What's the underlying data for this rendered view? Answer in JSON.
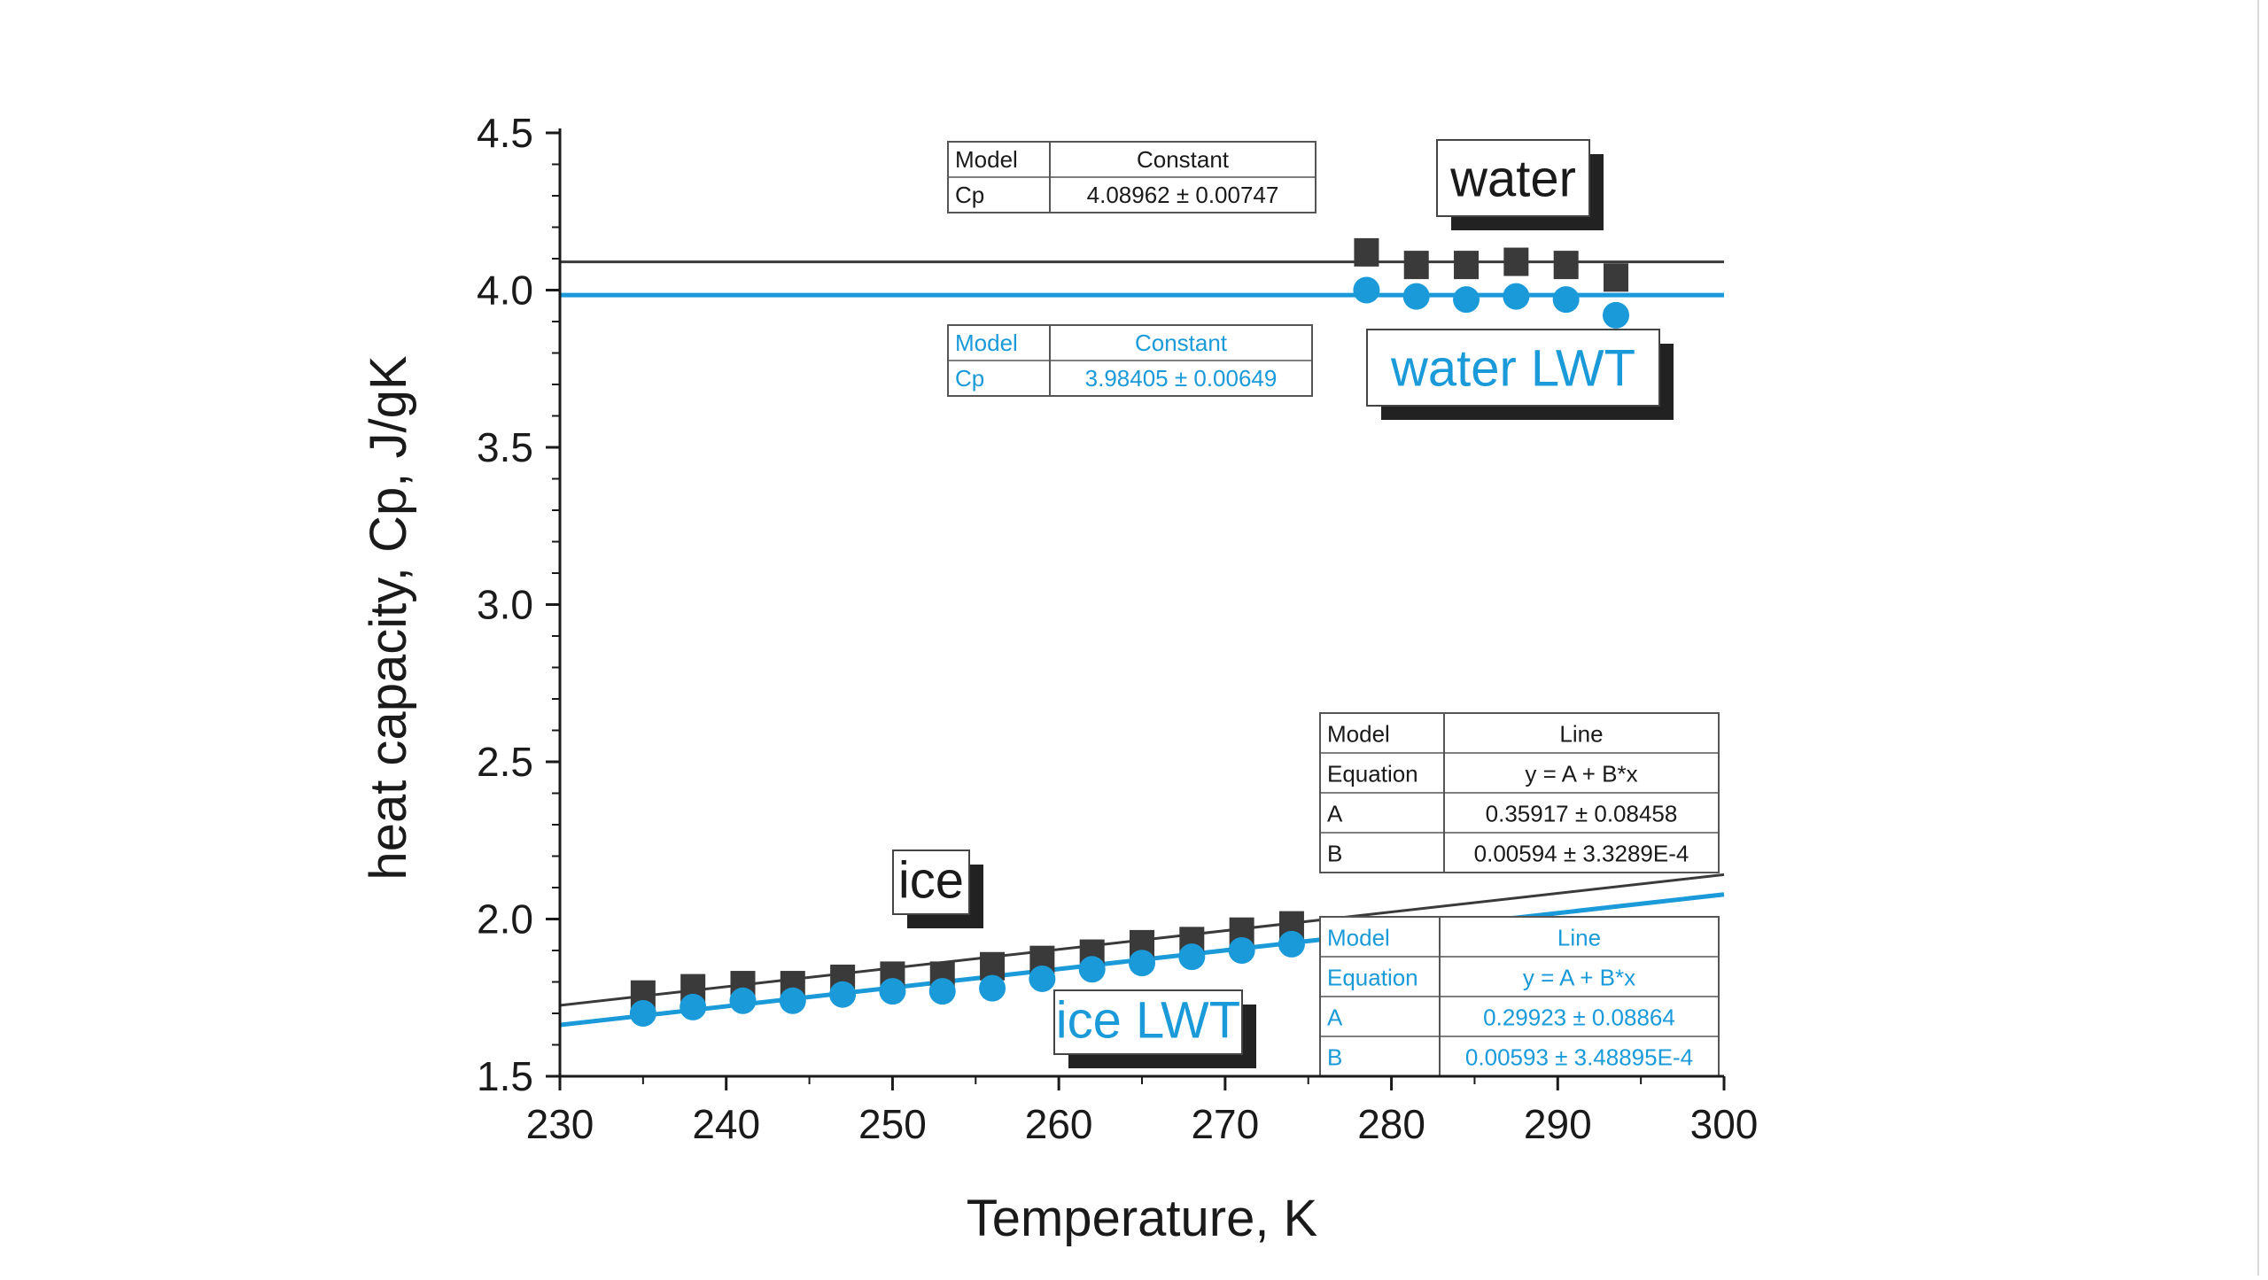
{
  "colors": {
    "water": "#3a3a3a",
    "lwt": "#1a9ad9",
    "axis": "#1a1a1a",
    "table_border": "#555555"
  },
  "chart_data": {
    "type": "scatter",
    "xlabel": "Temperature, K",
    "ylabel": "heat capacity, Cp, J/gK",
    "xlim": [
      230,
      300
    ],
    "ylim": [
      1.5,
      4.5
    ],
    "xticks": [
      230,
      240,
      250,
      260,
      270,
      280,
      290,
      300
    ],
    "yticks": [
      1.5,
      2.0,
      2.5,
      3.0,
      3.5,
      4.0,
      4.5
    ],
    "xtick_labels": [
      "230",
      "240",
      "250",
      "260",
      "270",
      "280",
      "290",
      "300"
    ],
    "ytick_labels": [
      "1.5",
      "2.0",
      "2.5",
      "3.0",
      "3.5",
      "4.0",
      "4.5"
    ],
    "series": [
      {
        "name": "water",
        "marker": "square",
        "color": "#3a3a3a",
        "x": [
          278.5,
          281.5,
          284.5,
          287.5,
          290.5,
          293.5
        ],
        "y": [
          4.12,
          4.08,
          4.08,
          4.09,
          4.08,
          4.04
        ]
      },
      {
        "name": "water LWT",
        "marker": "circle",
        "color": "#1a9ad9",
        "x": [
          278.5,
          281.5,
          284.5,
          287.5,
          290.5,
          293.5
        ],
        "y": [
          4.0,
          3.98,
          3.97,
          3.98,
          3.97,
          3.92
        ]
      },
      {
        "name": "ice",
        "marker": "square",
        "color": "#3a3a3a",
        "x": [
          235,
          238,
          241,
          244,
          247,
          250,
          253,
          256,
          259,
          262,
          265,
          268,
          271,
          274
        ],
        "y": [
          1.76,
          1.78,
          1.79,
          1.79,
          1.81,
          1.82,
          1.82,
          1.85,
          1.87,
          1.89,
          1.92,
          1.93,
          1.96,
          1.98
        ]
      },
      {
        "name": "ice LWT",
        "marker": "circle",
        "color": "#1a9ad9",
        "x": [
          235,
          238,
          241,
          244,
          247,
          250,
          253,
          256,
          259,
          262,
          265,
          268,
          271,
          274
        ],
        "y": [
          1.7,
          1.72,
          1.74,
          1.74,
          1.76,
          1.77,
          1.77,
          1.78,
          1.81,
          1.84,
          1.86,
          1.88,
          1.9,
          1.92
        ]
      }
    ],
    "fits": [
      {
        "name": "water fit",
        "type": "constant",
        "value": 4.08962,
        "x": [
          230,
          300
        ],
        "color": "#3a3a3a"
      },
      {
        "name": "water LWT fit",
        "type": "constant",
        "value": 3.98405,
        "x": [
          230,
          300
        ],
        "color": "#1a9ad9"
      },
      {
        "name": "ice fit",
        "type": "line",
        "A": 0.35917,
        "B": 0.00594,
        "x": [
          230,
          300
        ],
        "color": "#3a3a3a"
      },
      {
        "name": "ice LWT fit",
        "type": "line",
        "A": 0.29923,
        "B": 0.00593,
        "x": [
          230,
          300
        ],
        "color": "#1a9ad9"
      }
    ],
    "labels": {
      "water": "water",
      "water_lwt": "water LWT",
      "ice": "ice",
      "ice_lwt": "ice LWT"
    },
    "tables": {
      "water": {
        "rows": [
          [
            "Model",
            "Constant"
          ],
          [
            "Cp",
            "4.08962 ± 0.00747"
          ]
        ]
      },
      "water_lwt": {
        "rows": [
          [
            "Model",
            "Constant"
          ],
          [
            "Cp",
            "3.98405 ± 0.00649"
          ]
        ]
      },
      "ice": {
        "rows": [
          [
            "Model",
            "Line"
          ],
          [
            "Equation",
            "y = A + B*x"
          ],
          [
            "A",
            "0.35917 ± 0.08458"
          ],
          [
            "B",
            "0.00594 ± 3.3289E-4"
          ]
        ]
      },
      "ice_lwt": {
        "rows": [
          [
            "Model",
            "Line"
          ],
          [
            "Equation",
            "y = A + B*x"
          ],
          [
            "A",
            "0.29923 ± 0.08864"
          ],
          [
            "B",
            "0.00593 ± 3.48895E-4"
          ]
        ]
      }
    }
  }
}
